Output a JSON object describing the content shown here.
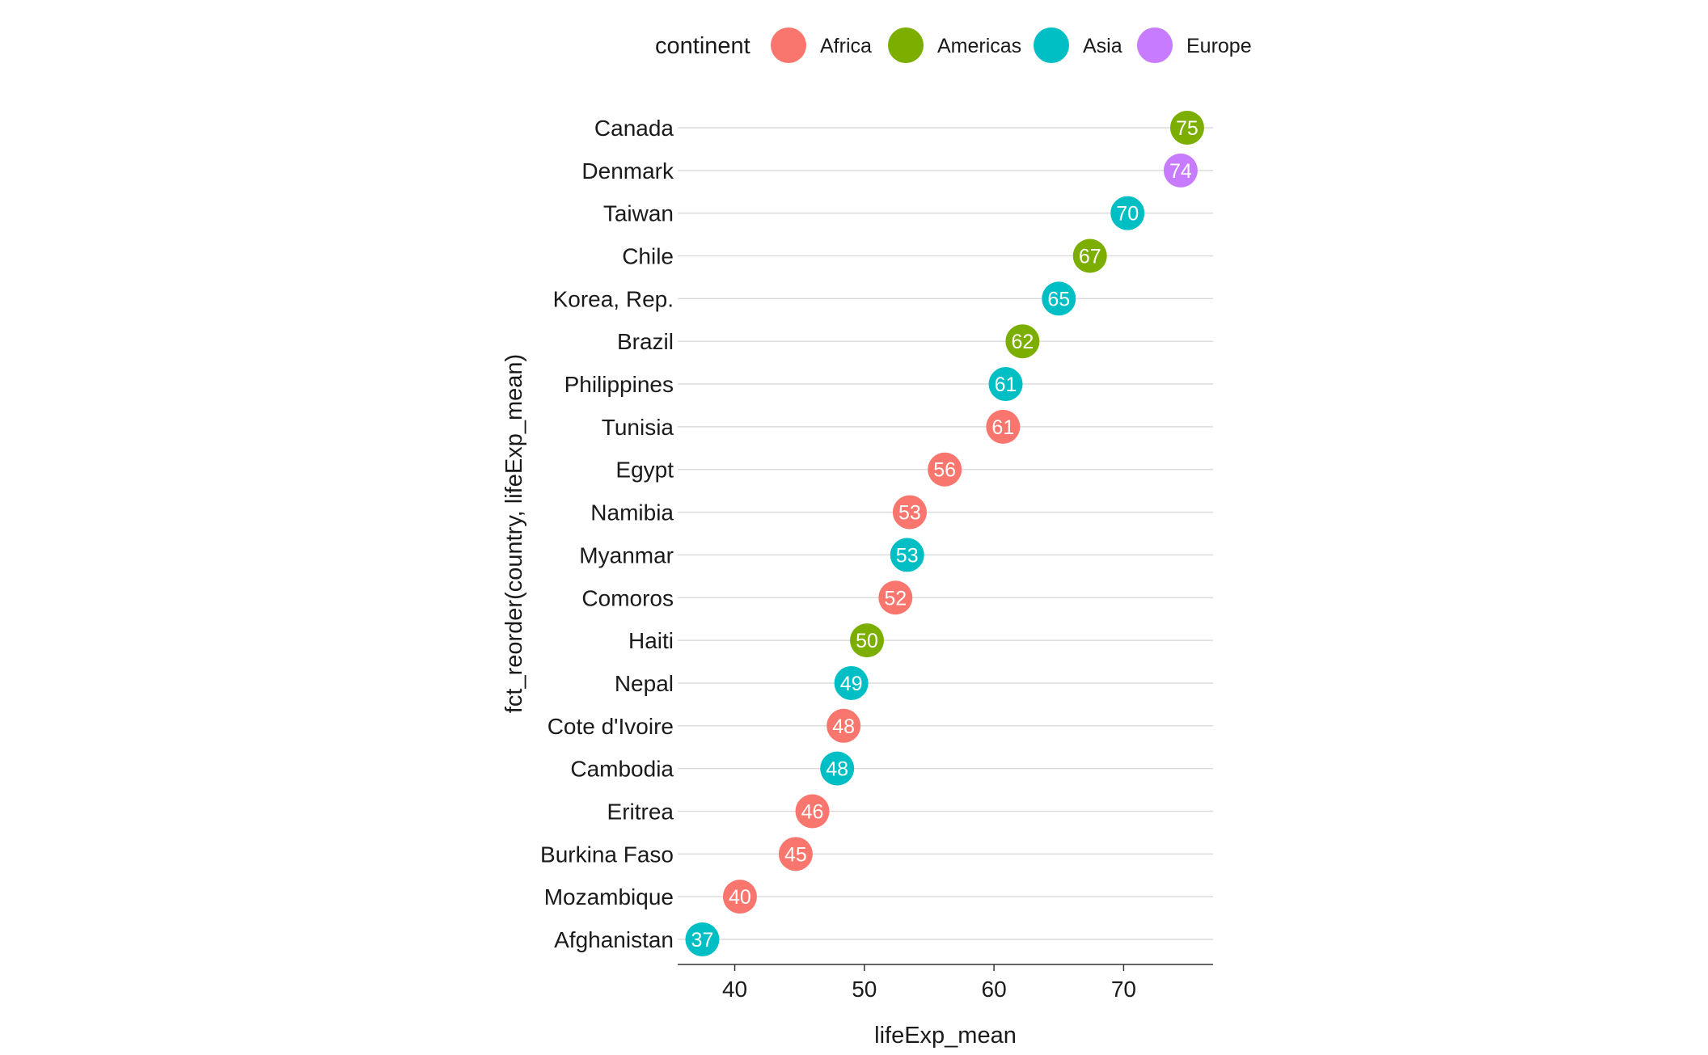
{
  "chart_data": {
    "type": "scatter",
    "xlabel": "lifeExp_mean",
    "ylabel": "fct_reorder(country, lifeExp_mean)",
    "xlim": [
      35.6,
      76.9
    ],
    "xticks": [
      40,
      50,
      60,
      70
    ],
    "grid": "horizontal",
    "legend_position": "top",
    "legend_title": "continent",
    "legend": [
      {
        "name": "Africa",
        "color": "#F8766D"
      },
      {
        "name": "Americas",
        "color": "#7CAE00"
      },
      {
        "name": "Asia",
        "color": "#00BFC4"
      },
      {
        "name": "Europe",
        "color": "#C77CFF"
      }
    ],
    "points": [
      {
        "country": "Canada",
        "x": 74.9,
        "label": "75",
        "continent": "Americas"
      },
      {
        "country": "Denmark",
        "x": 74.4,
        "label": "74",
        "continent": "Europe"
      },
      {
        "country": "Taiwan",
        "x": 70.3,
        "label": "70",
        "continent": "Asia"
      },
      {
        "country": "Chile",
        "x": 67.4,
        "label": "67",
        "continent": "Americas"
      },
      {
        "country": "Korea, Rep.",
        "x": 65.0,
        "label": "65",
        "continent": "Asia"
      },
      {
        "country": "Brazil",
        "x": 62.2,
        "label": "62",
        "continent": "Americas"
      },
      {
        "country": "Philippines",
        "x": 60.9,
        "label": "61",
        "continent": "Asia"
      },
      {
        "country": "Tunisia",
        "x": 60.7,
        "label": "61",
        "continent": "Africa"
      },
      {
        "country": "Egypt",
        "x": 56.2,
        "label": "56",
        "continent": "Africa"
      },
      {
        "country": "Namibia",
        "x": 53.5,
        "label": "53",
        "continent": "Africa"
      },
      {
        "country": "Myanmar",
        "x": 53.3,
        "label": "53",
        "continent": "Asia"
      },
      {
        "country": "Comoros",
        "x": 52.4,
        "label": "52",
        "continent": "Africa"
      },
      {
        "country": "Haiti",
        "x": 50.2,
        "label": "50",
        "continent": "Americas"
      },
      {
        "country": "Nepal",
        "x": 48.99,
        "label": "49",
        "continent": "Asia"
      },
      {
        "country": "Cote d'Ivoire",
        "x": 48.4,
        "label": "48",
        "continent": "Africa"
      },
      {
        "country": "Cambodia",
        "x": 47.9,
        "label": "48",
        "continent": "Asia"
      },
      {
        "country": "Eritrea",
        "x": 45.99,
        "label": "46",
        "continent": "Africa"
      },
      {
        "country": "Burkina Faso",
        "x": 44.7,
        "label": "45",
        "continent": "Africa"
      },
      {
        "country": "Mozambique",
        "x": 40.4,
        "label": "40",
        "continent": "Africa"
      },
      {
        "country": "Afghanistan",
        "x": 37.5,
        "label": "37",
        "continent": "Asia"
      }
    ]
  }
}
